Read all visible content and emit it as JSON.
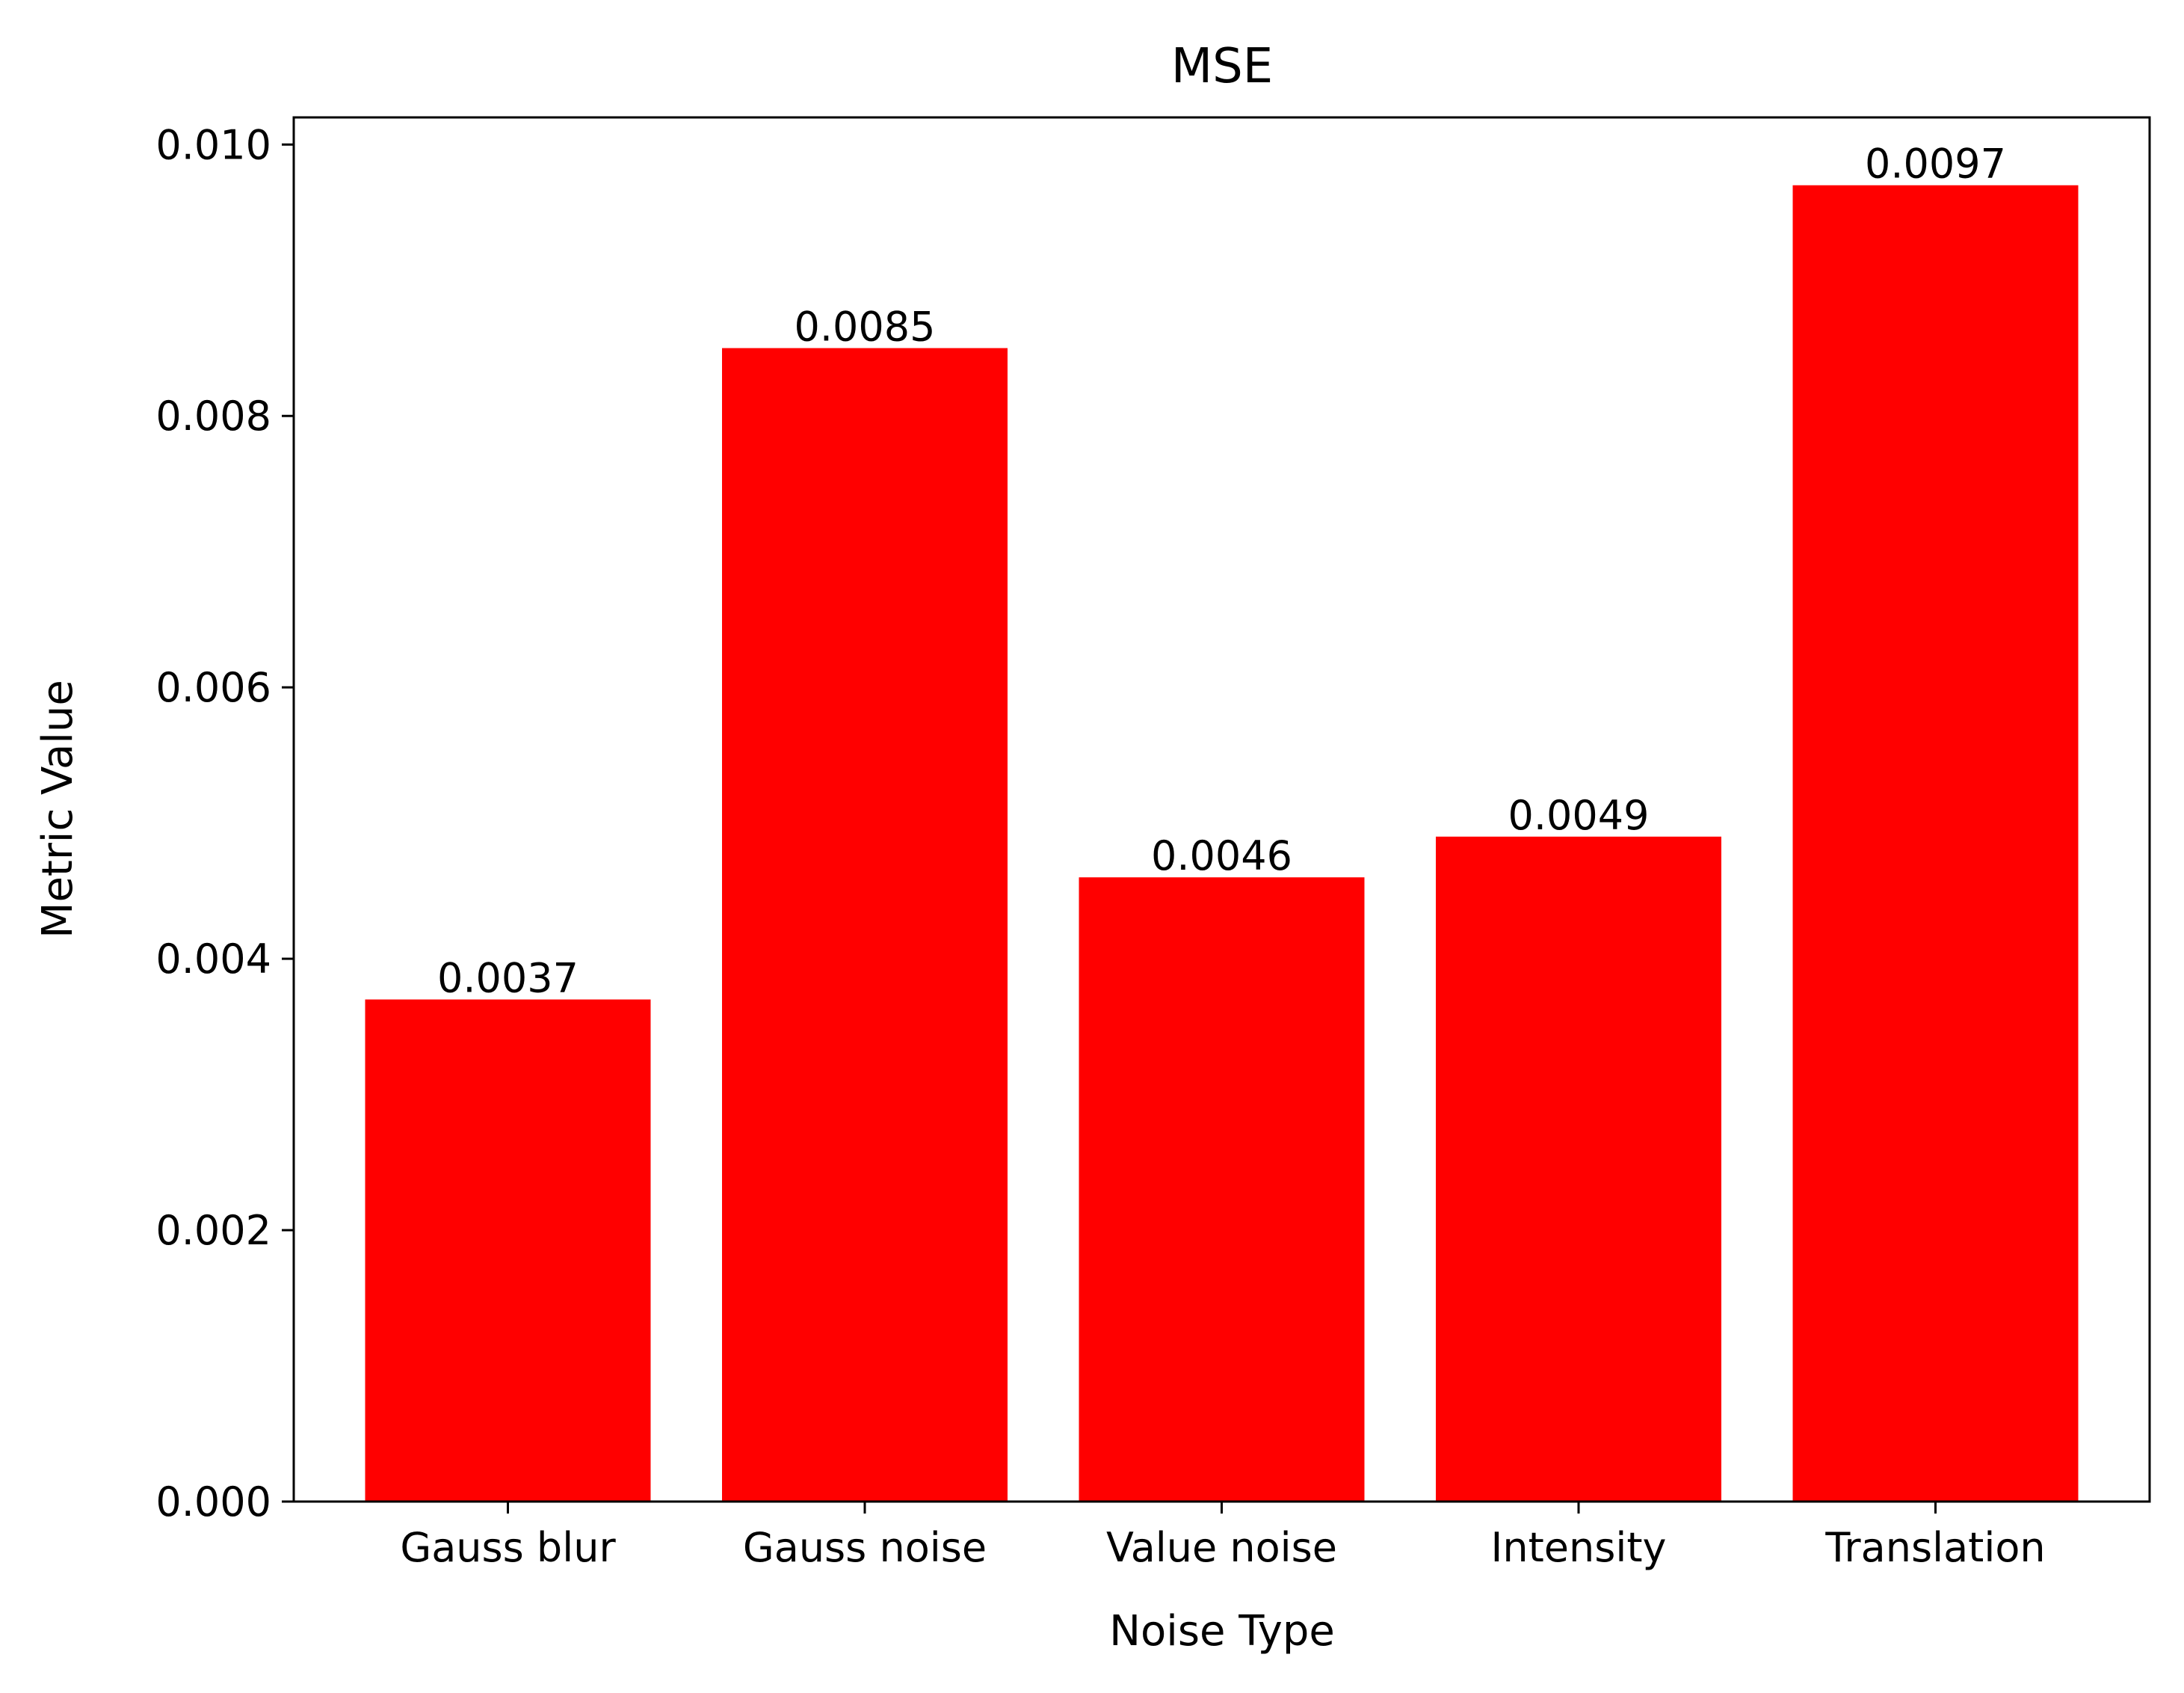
{
  "chart_data": {
    "type": "bar",
    "title": "MSE",
    "xlabel": "Noise Type",
    "ylabel": "Metric Value",
    "categories": [
      "Gauss blur",
      "Gauss noise",
      "Value noise",
      "Intensity",
      "Translation"
    ],
    "values": [
      0.0037,
      0.0085,
      0.0046,
      0.0049,
      0.0097
    ],
    "data_labels": [
      "0.0037",
      "0.0085",
      "0.0046",
      "0.0049",
      "0.0097"
    ],
    "ylim": [
      0,
      0.0102
    ],
    "yticks": [
      0.0,
      0.002,
      0.004,
      0.006,
      0.008,
      0.01
    ],
    "ytick_labels": [
      "0.000",
      "0.002",
      "0.004",
      "0.006",
      "0.008",
      "0.010"
    ],
    "bar_color": "#ff0000",
    "grid": false,
    "legend": "none"
  }
}
